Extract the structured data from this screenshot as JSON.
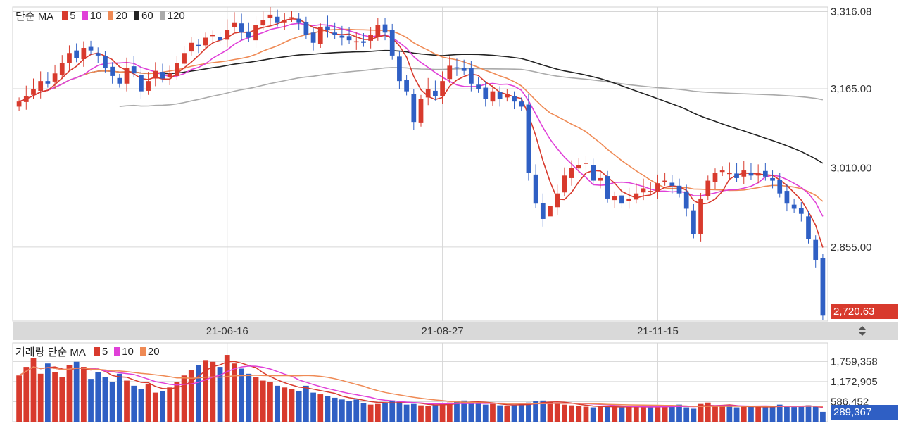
{
  "price_legend": {
    "title": "단순 MA",
    "items": [
      {
        "label": "5",
        "color": "#d83a2d"
      },
      {
        "label": "10",
        "color": "#e040d8"
      },
      {
        "label": "20",
        "color": "#ef8a55"
      },
      {
        "label": "60",
        "color": "#222222"
      },
      {
        "label": "120",
        "color": "#aaaaaa"
      }
    ]
  },
  "volume_legend": {
    "title": "거래량 단순 MA",
    "items": [
      {
        "label": "5",
        "color": "#d83a2d"
      },
      {
        "label": "10",
        "color": "#e040d8"
      },
      {
        "label": "20",
        "color": "#ef8a55"
      }
    ]
  },
  "last_price_label": "2,720.63",
  "last_volume_label": "289,367",
  "colors": {
    "up": "#d83a2d",
    "down": "#2f5fc4",
    "volume_tag": "#2f5fc4",
    "price_tag": "#d83a2d"
  },
  "chart_data": [
    {
      "type": "candlestick",
      "title": "",
      "y_ticks": [
        "3,316.08",
        "3,165.00",
        "3,010.00",
        "2,855.00"
      ],
      "y_tick_values": [
        3316.08,
        3165.0,
        3010.0,
        2855.0
      ],
      "ylim": [
        2710,
        3325
      ],
      "x_ticks": [
        "21-06-16",
        "21-08-27",
        "21-11-15"
      ],
      "x_tick_index": [
        29,
        59,
        89
      ],
      "last_value": 2720.63,
      "grid": true,
      "legend_position": "top-left",
      "closes": [
        3140,
        3150,
        3165,
        3180,
        3175,
        3195,
        3215,
        3235,
        3225,
        3245,
        3240,
        3230,
        3205,
        3190,
        3175,
        3205,
        3195,
        3160,
        3180,
        3200,
        3185,
        3195,
        3215,
        3235,
        3255,
        3250,
        3265,
        3270,
        3260,
        3280,
        3295,
        3275,
        3265,
        3290,
        3300,
        3310,
        3295,
        3300,
        3305,
        3295,
        3270,
        3255,
        3285,
        3280,
        3270,
        3265,
        3260,
        3258,
        3255,
        3270,
        3290,
        3275,
        3230,
        3180,
        3160,
        3100,
        3145,
        3165,
        3150,
        3180,
        3210,
        3205,
        3200,
        3175,
        3165,
        3145,
        3160,
        3145,
        3155,
        3140,
        3130,
        3000,
        2940,
        2910,
        2935,
        2960,
        2995,
        3010,
        3015,
        3020,
        2985,
        2990,
        2950,
        2955,
        2940,
        2950,
        2960,
        2970,
        2965,
        2980,
        2985,
        2975,
        2960,
        2930,
        2880,
        2950,
        2985,
        3000,
        3005,
        3000,
        2990,
        3005,
        2995,
        3000,
        2993,
        2985,
        2960,
        2940,
        2930,
        2920,
        2870,
        2830,
        2720.63
      ],
      "x_label": "",
      "y_label": ""
    },
    {
      "type": "bar",
      "title": "",
      "y_ticks": [
        "1,759,358",
        "1,172,905",
        "586,452"
      ],
      "y_tick_values": [
        1759358,
        1172905,
        586452
      ],
      "ylim": [
        0,
        2300000
      ],
      "last_value": 289367,
      "legend_position": "top-left",
      "volumes": [
        1350000,
        1600000,
        1850000,
        1400000,
        1700000,
        1450000,
        1300000,
        1650000,
        1750000,
        1600000,
        1250000,
        1450000,
        1300000,
        1150000,
        1400000,
        1200000,
        1050000,
        950000,
        1100000,
        850000,
        900000,
        1000000,
        1150000,
        1350000,
        1500000,
        1650000,
        1800000,
        1750000,
        1600000,
        1950000,
        1700000,
        1550000,
        1400000,
        1300000,
        1200000,
        1150000,
        1050000,
        1000000,
        950000,
        900000,
        1050000,
        850000,
        800000,
        750000,
        700000,
        650000,
        600000,
        650000,
        550000,
        500000,
        520000,
        560000,
        620000,
        580000,
        500000,
        520000,
        480000,
        460000,
        500000,
        520000,
        560000,
        600000,
        620000,
        580000,
        540000,
        500000,
        520000,
        480000,
        460000,
        500000,
        520000,
        560000,
        600000,
        620000,
        580000,
        540000,
        500000,
        480000,
        460000,
        440000,
        420000,
        440000,
        460000,
        430000,
        420000,
        440000,
        450000,
        430000,
        420000,
        440000,
        460000,
        480000,
        500000,
        420000,
        380000,
        520000,
        560000,
        480000,
        460000,
        440000,
        420000,
        440000,
        460000,
        430000,
        420000,
        440000,
        500000,
        450000,
        430000,
        460000,
        480000,
        440000,
        289367
      ],
      "x_label": "",
      "y_label": ""
    }
  ]
}
